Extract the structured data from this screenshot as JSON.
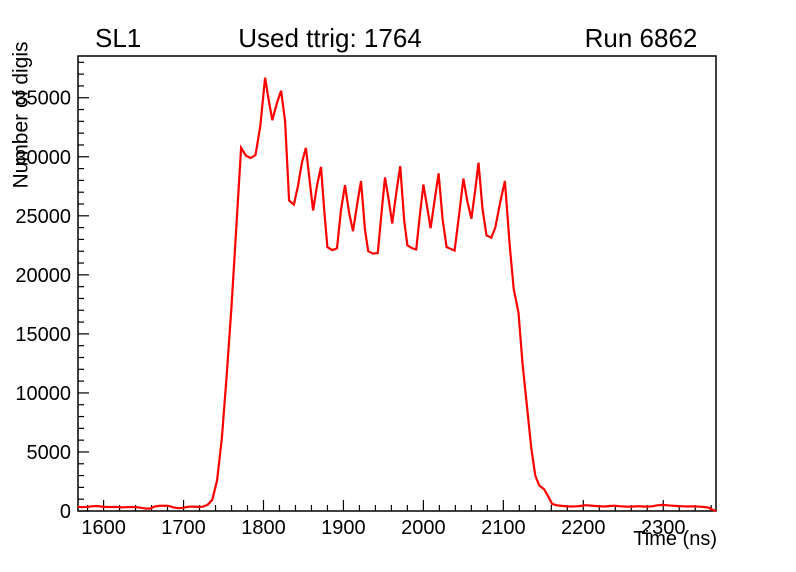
{
  "titles": {
    "left": "SL1",
    "center": "Used ttrig: 1764",
    "right": "Run 6862"
  },
  "chart_data": {
    "type": "line",
    "title": "Used ttrig: 1764",
    "xlabel": "Time (ns)",
    "ylabel": "Number of digis",
    "xlim": [
      1568,
      2366
    ],
    "ylim": [
      0,
      38535
    ],
    "grid": false,
    "legend": null,
    "line_color": "#ff0000",
    "axis_color": "#000000",
    "background_color": "#ffffff",
    "x_major_ticks": [
      1600,
      1700,
      1800,
      1900,
      2000,
      2100,
      2200,
      2300
    ],
    "x_major_step": 100,
    "x_minor_step": 20,
    "y_major_ticks": [
      0,
      5000,
      10000,
      15000,
      20000,
      25000,
      30000,
      35000
    ],
    "y_major_step": 5000,
    "y_minor_step": 1000,
    "series": [
      {
        "name": "digis-vs-time",
        "points": [
          [
            1568,
            340
          ],
          [
            1574,
            330
          ],
          [
            1580,
            350
          ],
          [
            1586,
            410
          ],
          [
            1592,
            420
          ],
          [
            1598,
            370
          ],
          [
            1604,
            340
          ],
          [
            1610,
            335
          ],
          [
            1616,
            345
          ],
          [
            1622,
            305
          ],
          [
            1628,
            320
          ],
          [
            1634,
            340
          ],
          [
            1640,
            330
          ],
          [
            1646,
            280
          ],
          [
            1652,
            215
          ],
          [
            1658,
            200
          ],
          [
            1664,
            380
          ],
          [
            1670,
            440
          ],
          [
            1676,
            450
          ],
          [
            1682,
            420
          ],
          [
            1688,
            300
          ],
          [
            1694,
            235
          ],
          [
            1700,
            280
          ],
          [
            1706,
            360
          ],
          [
            1712,
            370
          ],
          [
            1718,
            350
          ],
          [
            1724,
            365
          ],
          [
            1730,
            520
          ],
          [
            1736,
            950
          ],
          [
            1742,
            2600
          ],
          [
            1748,
            6200
          ],
          [
            1754,
            11500
          ],
          [
            1760,
            17300
          ],
          [
            1766,
            24000
          ],
          [
            1772,
            30760
          ],
          [
            1778,
            30100
          ],
          [
            1784,
            29900
          ],
          [
            1790,
            30150
          ],
          [
            1796,
            32600
          ],
          [
            1802,
            36700
          ],
          [
            1806,
            35000
          ],
          [
            1811,
            33100
          ],
          [
            1817,
            34600
          ],
          [
            1822,
            35600
          ],
          [
            1827,
            33000
          ],
          [
            1832,
            26300
          ],
          [
            1838,
            25950
          ],
          [
            1843,
            27500
          ],
          [
            1848,
            29500
          ],
          [
            1853,
            30750
          ],
          [
            1858,
            27800
          ],
          [
            1862,
            25450
          ],
          [
            1867,
            27600
          ],
          [
            1872,
            29150
          ],
          [
            1876,
            25500
          ],
          [
            1880,
            22350
          ],
          [
            1886,
            22100
          ],
          [
            1892,
            22250
          ],
          [
            1897,
            25500
          ],
          [
            1902,
            27600
          ],
          [
            1907,
            25300
          ],
          [
            1912,
            23700
          ],
          [
            1917,
            25900
          ],
          [
            1922,
            27950
          ],
          [
            1927,
            23800
          ],
          [
            1931,
            22000
          ],
          [
            1937,
            21800
          ],
          [
            1943,
            21850
          ],
          [
            1948,
            25500
          ],
          [
            1952,
            28250
          ],
          [
            1957,
            26200
          ],
          [
            1961,
            24350
          ],
          [
            1966,
            26900
          ],
          [
            1971,
            29200
          ],
          [
            1976,
            24600
          ],
          [
            1980,
            22500
          ],
          [
            1986,
            22250
          ],
          [
            1991,
            22150
          ],
          [
            1996,
            25300
          ],
          [
            2000,
            27650
          ],
          [
            2005,
            25600
          ],
          [
            2009,
            23950
          ],
          [
            2014,
            26300
          ],
          [
            2019,
            28600
          ],
          [
            2024,
            24700
          ],
          [
            2029,
            22350
          ],
          [
            2034,
            22200
          ],
          [
            2039,
            22050
          ],
          [
            2045,
            25300
          ],
          [
            2050,
            28150
          ],
          [
            2055,
            26200
          ],
          [
            2060,
            24750
          ],
          [
            2065,
            27300
          ],
          [
            2069,
            29500
          ],
          [
            2074,
            25600
          ],
          [
            2079,
            23350
          ],
          [
            2085,
            23150
          ],
          [
            2090,
            24000
          ],
          [
            2096,
            26100
          ],
          [
            2102,
            27950
          ],
          [
            2108,
            22500
          ],
          [
            2113,
            18800
          ],
          [
            2119,
            16800
          ],
          [
            2124,
            12500
          ],
          [
            2130,
            8600
          ],
          [
            2135,
            5300
          ],
          [
            2140,
            3000
          ],
          [
            2145,
            2150
          ],
          [
            2151,
            1850
          ],
          [
            2156,
            1250
          ],
          [
            2161,
            600
          ],
          [
            2167,
            480
          ],
          [
            2173,
            430
          ],
          [
            2179,
            400
          ],
          [
            2185,
            380
          ],
          [
            2191,
            400
          ],
          [
            2197,
            430
          ],
          [
            2203,
            490
          ],
          [
            2209,
            460
          ],
          [
            2215,
            425
          ],
          [
            2221,
            400
          ],
          [
            2227,
            385
          ],
          [
            2233,
            425
          ],
          [
            2239,
            445
          ],
          [
            2245,
            405
          ],
          [
            2251,
            385
          ],
          [
            2257,
            365
          ],
          [
            2263,
            385
          ],
          [
            2269,
            405
          ],
          [
            2275,
            385
          ],
          [
            2281,
            365
          ],
          [
            2287,
            405
          ],
          [
            2293,
            480
          ],
          [
            2299,
            520
          ],
          [
            2305,
            485
          ],
          [
            2311,
            445
          ],
          [
            2317,
            425
          ],
          [
            2323,
            405
          ],
          [
            2329,
            385
          ],
          [
            2335,
            400
          ],
          [
            2341,
            380
          ],
          [
            2347,
            360
          ],
          [
            2352,
            330
          ],
          [
            2357,
            280
          ],
          [
            2361,
            120
          ],
          [
            2366,
            0
          ]
        ]
      }
    ]
  }
}
